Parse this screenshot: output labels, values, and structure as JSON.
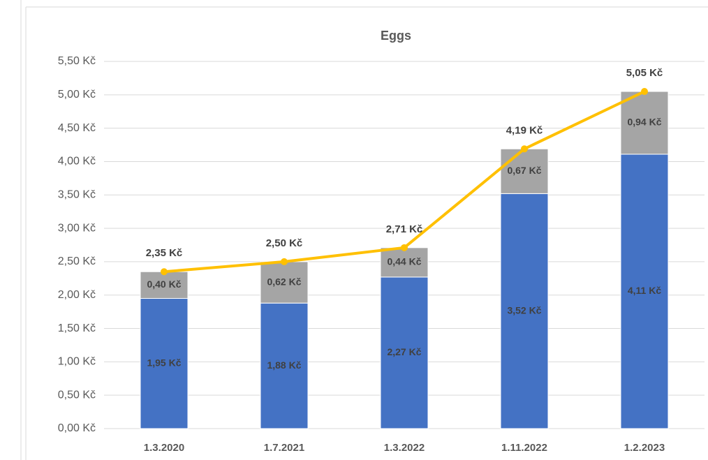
{
  "chart_data": {
    "type": "bar",
    "stacked": true,
    "title": "Eggs",
    "categories": [
      "1.3.2020",
      "1.7.2021",
      "1.3.2022",
      "1.11.2022",
      "1.2.2023"
    ],
    "series": [
      {
        "type": "bar",
        "color": "#4472c4",
        "values": [
          1.95,
          1.88,
          2.27,
          3.52,
          4.11
        ],
        "value_labels": [
          "1,95 Kč",
          "1,88 Kč",
          "2,27 Kč",
          "3,52 Kč",
          "4,11 Kč"
        ]
      },
      {
        "type": "bar",
        "color": "#a5a5a5",
        "values": [
          0.4,
          0.62,
          0.44,
          0.67,
          0.94
        ],
        "value_labels": [
          "0,40 Kč",
          "0,62 Kč",
          "0,44 Kč",
          "0,67 Kč",
          "0,94 Kč"
        ]
      },
      {
        "type": "line",
        "color": "#ffc000",
        "values": [
          2.35,
          2.5,
          2.71,
          4.19,
          5.05
        ],
        "value_labels": [
          "2,35 Kč",
          "2,50 Kč",
          "2,71 Kč",
          "4,19 Kč",
          "5,05 Kč"
        ]
      }
    ],
    "ylim": [
      0,
      5.5
    ],
    "yticks": [
      {
        "value": 0,
        "label": "0,00 Kč"
      },
      {
        "value": 0.5,
        "label": "0,50 Kč"
      },
      {
        "value": 1,
        "label": "1,00 Kč"
      },
      {
        "value": 1.5,
        "label": "1,50 Kč"
      },
      {
        "value": 2,
        "label": "2,00 Kč"
      },
      {
        "value": 2.5,
        "label": "2,50 Kč"
      },
      {
        "value": 3,
        "label": "3,00 Kč"
      },
      {
        "value": 3.5,
        "label": "3,50 Kč"
      },
      {
        "value": 4,
        "label": "4,00 Kč"
      },
      {
        "value": 4.5,
        "label": "4,50 Kč"
      },
      {
        "value": 5,
        "label": "5,00 Kč"
      },
      {
        "value": 5.5,
        "label": "5,50 Kč"
      }
    ],
    "grid": true
  }
}
